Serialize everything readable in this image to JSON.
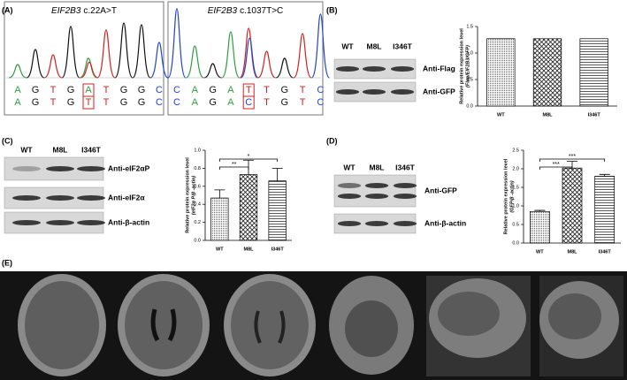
{
  "panel_labels": [
    "(A)",
    "(B)",
    "(C)",
    "(D)",
    "(E)"
  ],
  "sequencing": [
    {
      "gene": "EIF2B3",
      "variant": "c.22A>T",
      "rows": [
        [
          "A",
          "G",
          "T",
          "G",
          "A",
          "T",
          "G",
          "G",
          "C"
        ],
        [
          "A",
          "G",
          "T",
          "G",
          "T",
          "T",
          "G",
          "G",
          "C"
        ]
      ]
    },
    {
      "gene": "EIF2B3",
      "variant": "c.1037T>C",
      "rows": [
        [
          "C",
          "A",
          "G",
          "A",
          "T",
          "T",
          "G",
          "T",
          "C"
        ],
        [
          "C",
          "A",
          "G",
          "A",
          "C",
          "T",
          "G",
          "T",
          "C"
        ]
      ]
    }
  ],
  "blots": [
    {
      "lanes": [
        "WT",
        "M8L",
        "I346T"
      ],
      "antibodies": [
        "Anti-Flag",
        "Anti-GFP"
      ]
    },
    {
      "lanes": [
        "WT",
        "M8L",
        "I346T"
      ],
      "antibodies": [
        "Anti-eIF2αP",
        "Anti-eIF2α",
        "Anti-β-actin"
      ]
    },
    {
      "lanes": [
        "WT",
        "M8L",
        "I346T"
      ],
      "antibodies": [
        "Anti-GFP",
        "Anti-β-actin"
      ]
    }
  ],
  "chart_data": [
    {
      "type": "bar",
      "categories": [
        "WT",
        "M8L",
        "I346T"
      ],
      "values": [
        1.27,
        1.27,
        1.27
      ],
      "ylim": [
        0,
        1.5
      ],
      "yticks": [
        {
          "value": 0,
          "label": "0.0"
        },
        0.5,
        {
          "value": 1,
          "label": "1.0"
        },
        1.5
      ],
      "ylabel": "Relative protein expression level",
      "ylabel_unit": "(Flag/EIF2B3/GFP)"
    },
    {
      "type": "bar",
      "categories": [
        "WT",
        "M8L",
        "I346T"
      ],
      "values": [
        0.47,
        0.73,
        0.66
      ],
      "errors": [
        0.09,
        0.16,
        0.14
      ],
      "annotations": [
        "**",
        "*"
      ],
      "ylim": [
        0,
        1
      ],
      "yticks": [
        {
          "value": 0,
          "label": "0.0"
        },
        0.2,
        0.4,
        0.6,
        0.8,
        {
          "value": 1,
          "label": "1.0"
        }
      ],
      "ylabel": "Relative protein expression level",
      "ylabel_unit": "(eIF2α P/β -actin)"
    },
    {
      "type": "bar",
      "categories": [
        "WT",
        "M8L",
        "I346T"
      ],
      "values": [
        0.85,
        2.02,
        1.8
      ],
      "errors": [
        0.03,
        0.18,
        0.05
      ],
      "annotations": [
        "***",
        "***"
      ],
      "ylim": [
        0,
        2.5
      ],
      "yticks": [
        {
          "value": 0,
          "label": "0.0"
        },
        0.5,
        {
          "value": 1,
          "label": "1.0"
        },
        1.5,
        {
          "value": 2,
          "label": "2.0"
        },
        2.5
      ],
      "ylabel": "Relative protein expression level",
      "ylabel_unit": "(GFP/β -actin)"
    }
  ]
}
